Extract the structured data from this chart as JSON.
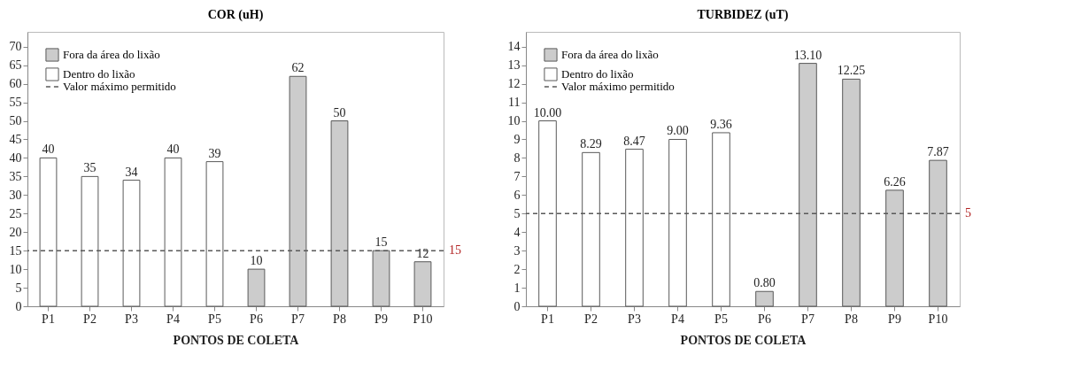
{
  "chart_data": [
    {
      "type": "bar",
      "title": "COR (uH)",
      "xlabel": "PONTOS DE COLETA",
      "categories": [
        "P1",
        "P2",
        "P3",
        "P4",
        "P5",
        "P6",
        "P7",
        "P8",
        "P9",
        "P10"
      ],
      "series": [
        {
          "name": "Fora da área do lixão",
          "color": "#cccccc",
          "values": [
            null,
            null,
            null,
            null,
            null,
            10,
            62,
            50,
            15,
            12
          ]
        },
        {
          "name": "Dentro do lixão",
          "color": "#ffffff",
          "values": [
            40,
            35,
            34,
            40,
            39,
            null,
            null,
            null,
            null,
            null
          ]
        }
      ],
      "ylim": [
        0,
        74
      ],
      "yticks": [
        0,
        5,
        10,
        15,
        20,
        25,
        30,
        35,
        40,
        45,
        50,
        55,
        60,
        65,
        70
      ],
      "data_labels": true,
      "legend": "top left",
      "ref_lines": [
        {
          "axis": "y",
          "value": 15,
          "label": "Valor máximo permitido",
          "color": "#595959",
          "line_style": "dashed"
        }
      ],
      "annotations": [
        "15"
      ]
    },
    {
      "type": "bar",
      "title": "TURBIDEZ (uT)",
      "xlabel": "PONTOS DE COLETA",
      "categories": [
        "P1",
        "P2",
        "P3",
        "P4",
        "P5",
        "P6",
        "P7",
        "P8",
        "P9",
        "P10"
      ],
      "series": [
        {
          "name": "Fora da área do lixão",
          "color": "#cccccc",
          "values": [
            null,
            null,
            null,
            null,
            null,
            0.8,
            13.1,
            12.25,
            6.26,
            7.87
          ],
          "value_labels": [
            null,
            null,
            null,
            null,
            null,
            "0.80",
            "13.10",
            "12.25",
            "6.26",
            "7.87"
          ]
        },
        {
          "name": "Dentro do lixão",
          "color": "#ffffff",
          "values": [
            10,
            8.29,
            8.47,
            9,
            9.36,
            null,
            null,
            null,
            null,
            null
          ],
          "value_labels": [
            "10.00",
            "8.29",
            "8.47",
            "9.00",
            "9.36",
            null,
            null,
            null,
            null,
            null
          ]
        }
      ],
      "ylim": [
        0,
        14.8
      ],
      "yticks": [
        0,
        1,
        2,
        3,
        4,
        5,
        6,
        7,
        8,
        9,
        10,
        11,
        12,
        13,
        14
      ],
      "legend": "top left",
      "ref_lines": [
        {
          "axis": "y",
          "value": 5,
          "label": "Valor máximo permitido",
          "color": "#595959",
          "line_style": "dashed"
        }
      ],
      "annotations": [
        "5"
      ]
    }
  ]
}
